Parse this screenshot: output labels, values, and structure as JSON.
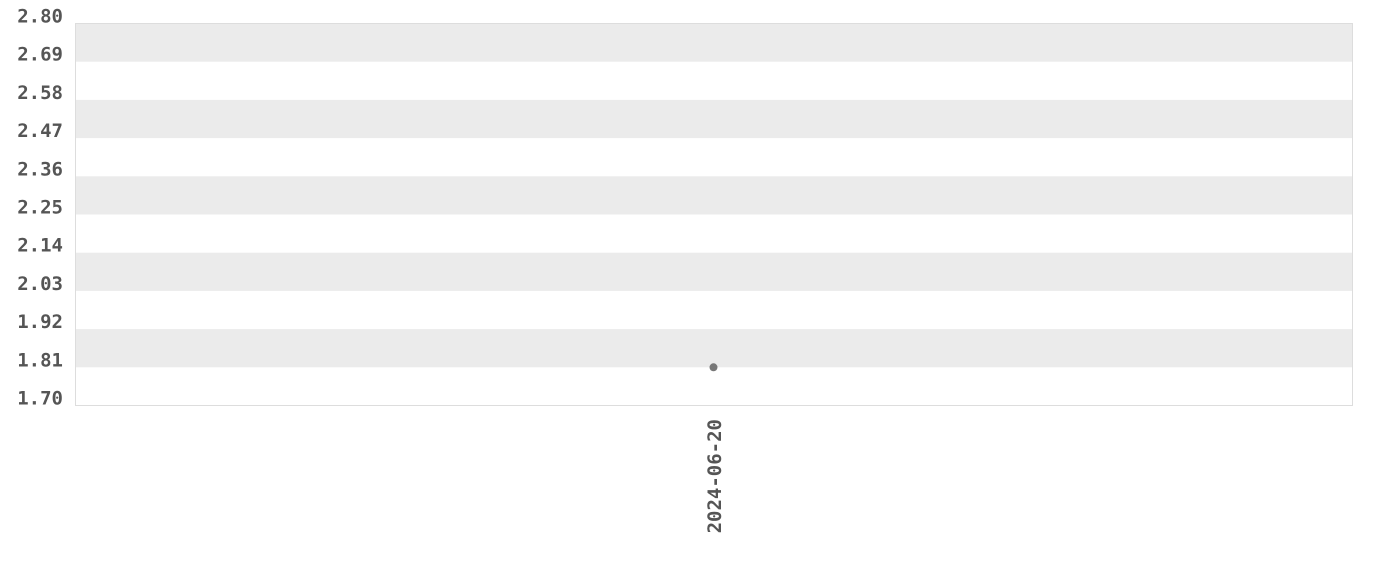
{
  "chart_data": {
    "type": "scatter",
    "title": "",
    "xlabel": "",
    "ylabel": "",
    "x_categories": [
      "2024-06-20"
    ],
    "y_ticks": [
      "1.70",
      "1.81",
      "1.92",
      "2.03",
      "2.14",
      "2.25",
      "2.36",
      "2.47",
      "2.58",
      "2.69",
      "2.80"
    ],
    "ylim": [
      1.7,
      2.8
    ],
    "points": [
      {
        "x": "2024-06-20",
        "y": 1.81
      }
    ],
    "grid": "alternating horizontal bands",
    "colors": {
      "band": "#ebebeb",
      "point": "#777777",
      "text": "#555555",
      "border": "#dddddd"
    }
  }
}
